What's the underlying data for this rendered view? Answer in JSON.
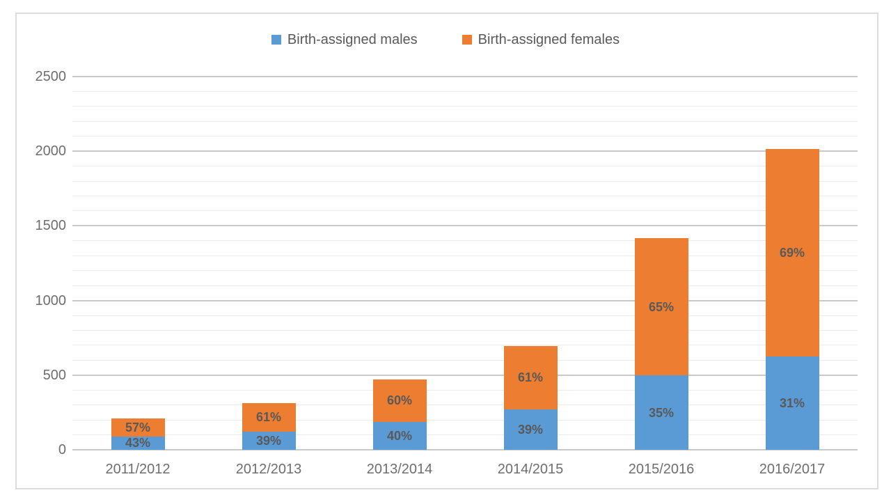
{
  "page": {
    "background": "#ffffff",
    "frame_border_color": "#dcdcdc"
  },
  "colors": {
    "males_blue": "#5B9BD5",
    "females_orange": "#ED7D31",
    "data_label_text": "#595959",
    "axis_text": "#6e6e6e",
    "legend_text": "#595959",
    "gridline_major": "#c9c9c9",
    "gridline_minor": "#ebebeb"
  },
  "chart_data": {
    "type": "bar",
    "stacked": true,
    "title": "",
    "xlabel": "",
    "ylabel": "",
    "categories": [
      "2011/2012",
      "2012/2013",
      "2013/2014",
      "2014/2015",
      "2015/2016",
      "2016/2017"
    ],
    "series": [
      {
        "name": "Birth-assigned males",
        "color": "#5B9BD5",
        "values": [
          90,
          122,
          188,
          272,
          497,
          625
        ],
        "percent_labels": [
          "43%",
          "39%",
          "40%",
          "39%",
          "35%",
          "31%"
        ]
      },
      {
        "name": "Birth-assigned females",
        "color": "#ED7D31",
        "values": [
          120,
          192,
          282,
          425,
          922,
          1391
        ],
        "percent_labels": [
          "57%",
          "61%",
          "60%",
          "61%",
          "65%",
          "69%"
        ]
      }
    ],
    "totals": [
      210,
      314,
      470,
      697,
      1419,
      2016
    ],
    "ylim": [
      0,
      2500
    ],
    "y_major_step": 500,
    "y_minor_step": 100,
    "y_ticks": [
      "0",
      "500",
      "1000",
      "1500",
      "2000",
      "2500"
    ],
    "grid": true,
    "legend_position": "top-center"
  }
}
